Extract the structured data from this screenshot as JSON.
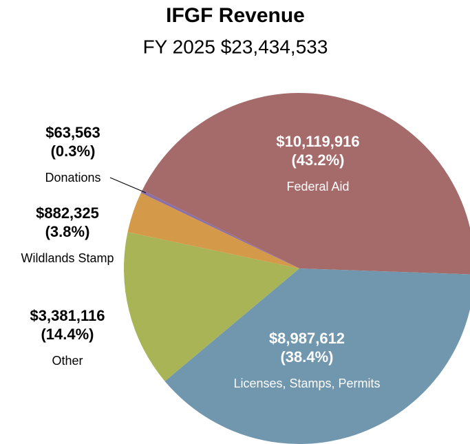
{
  "chart_data": {
    "type": "pie",
    "title": "IFGF Revenue",
    "subtitle": "FY 2025 $23,434,533",
    "categories": [
      "Federal Aid",
      "Licenses, Stamps, Permits",
      "Other",
      "Wildlands Stamp",
      "Donations"
    ],
    "values": [
      10119916,
      8987612,
      3381116,
      882325,
      63563
    ],
    "value_labels": [
      "$10,119,916",
      "$8,987,612",
      "$3,381,116",
      "$882,325",
      "$63,563"
    ],
    "percent_labels": [
      "(43.2%)",
      "(38.4%)",
      "(14.4%)",
      "(3.8%)",
      "(0.3%)"
    ],
    "colors": [
      "#a56b6b",
      "#7197ae",
      "#a9b457",
      "#d49a49",
      "#8a6fa8"
    ]
  }
}
